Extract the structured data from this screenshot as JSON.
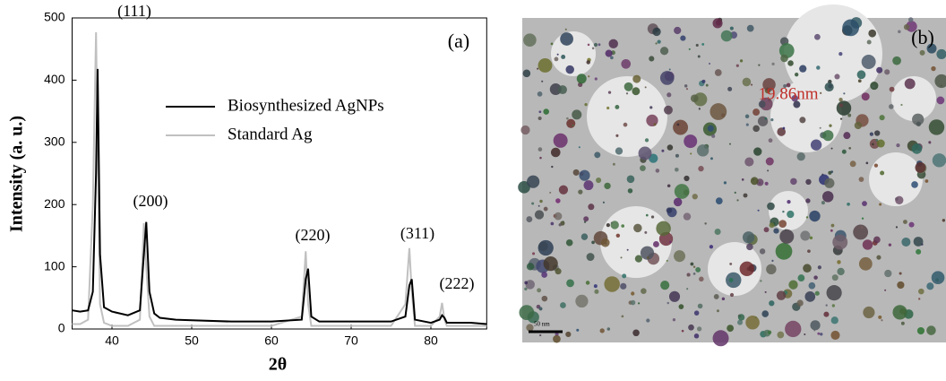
{
  "chart_data": {
    "type": "line",
    "ylabel": "Intensity (a. u.)",
    "xlabel": "2θ",
    "x": [
      35,
      36,
      37,
      37.6,
      38,
      38.2,
      38.5,
      39,
      40,
      42,
      43.5,
      44,
      44.3,
      44.7,
      45.3,
      46,
      48,
      50,
      55,
      60,
      63.8,
      64.3,
      64.6,
      65,
      66,
      70,
      75,
      76.8,
      77.3,
      77.6,
      78,
      80,
      81.1,
      81.4,
      81.7,
      82,
      85,
      87
    ],
    "series": [
      {
        "name": "Biosynthesized AgNPs",
        "color": "#000000",
        "values": [
          30,
          28,
          30,
          60,
          250,
          418,
          120,
          35,
          28,
          22,
          30,
          120,
          172,
          60,
          25,
          18,
          15,
          14,
          12,
          12,
          15,
          80,
          97,
          20,
          12,
          12,
          12,
          20,
          70,
          80,
          15,
          10,
          15,
          22,
          18,
          10,
          10,
          8
        ]
      },
      {
        "name": "Standard Ag",
        "color": "#c0c0c0",
        "values": [
          8,
          8,
          15,
          200,
          477,
          300,
          40,
          10,
          5,
          5,
          15,
          170,
          100,
          20,
          5,
          5,
          5,
          5,
          5,
          5,
          20,
          125,
          40,
          5,
          5,
          5,
          5,
          40,
          130,
          60,
          5,
          5,
          20,
          42,
          15,
          5,
          5,
          5
        ]
      }
    ],
    "annotations": [
      "(111)",
      "(200)",
      "(220)",
      "(311)",
      "(222)",
      "(a)"
    ],
    "xlim": [
      35,
      87
    ],
    "ylim": [
      0,
      500
    ],
    "xticks": [
      40,
      50,
      60,
      70,
      80
    ],
    "yticks": [
      0,
      100,
      200,
      300,
      400,
      500
    ]
  },
  "image": {
    "label": "(b)",
    "annotation": "19.86nm",
    "scale_bar": "50 nm"
  }
}
